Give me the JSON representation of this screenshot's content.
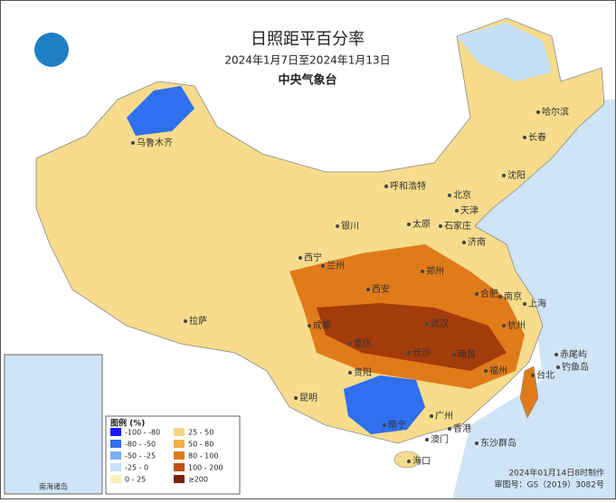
{
  "header": {
    "title": "日照距平百分率",
    "subtitle": "2024年1月7日至2024年1月13日",
    "agency": "中央气象台"
  },
  "legend": {
    "title": "图例 (%)",
    "items": [
      {
        "label": "-100 - -80",
        "color": "#1a1aff"
      },
      {
        "label": "-80 - -50",
        "color": "#2f6ff0"
      },
      {
        "label": "-50 - -25",
        "color": "#78aef0"
      },
      {
        "label": "-25 - 0",
        "color": "#c6e0f8"
      },
      {
        "label": "0 - 25",
        "color": "#fbf0b8"
      },
      {
        "label": "25 - 50",
        "color": "#f6d683"
      },
      {
        "label": "50 - 80",
        "color": "#f0b045"
      },
      {
        "label": "80 - 100",
        "color": "#e07b1a"
      },
      {
        "label": "100 - 200",
        "color": "#c0500e"
      },
      {
        "label": "≥200",
        "color": "#7b2206"
      }
    ]
  },
  "cities": [
    "乌鲁木齐",
    "哈尔滨",
    "长春",
    "沈阳",
    "呼和浩特",
    "北京",
    "天津",
    "银川",
    "太原",
    "石家庄",
    "济南",
    "西宁",
    "兰州",
    "郑州",
    "西安",
    "合肥",
    "南京",
    "上海",
    "成都",
    "武汉",
    "杭州",
    "拉萨",
    "重庆",
    "长沙",
    "南昌",
    "福州",
    "台北",
    "贵阳",
    "昆明",
    "南宁",
    "广州",
    "香港",
    "澳门",
    "海口",
    "赤尾屿",
    "钓鱼岛",
    "东沙群岛"
  ],
  "inset": {
    "label": "南海诸岛"
  },
  "footer": {
    "made": "2024年01月14日8时制作",
    "approval": "审图号：GS（2019）3082号"
  }
}
